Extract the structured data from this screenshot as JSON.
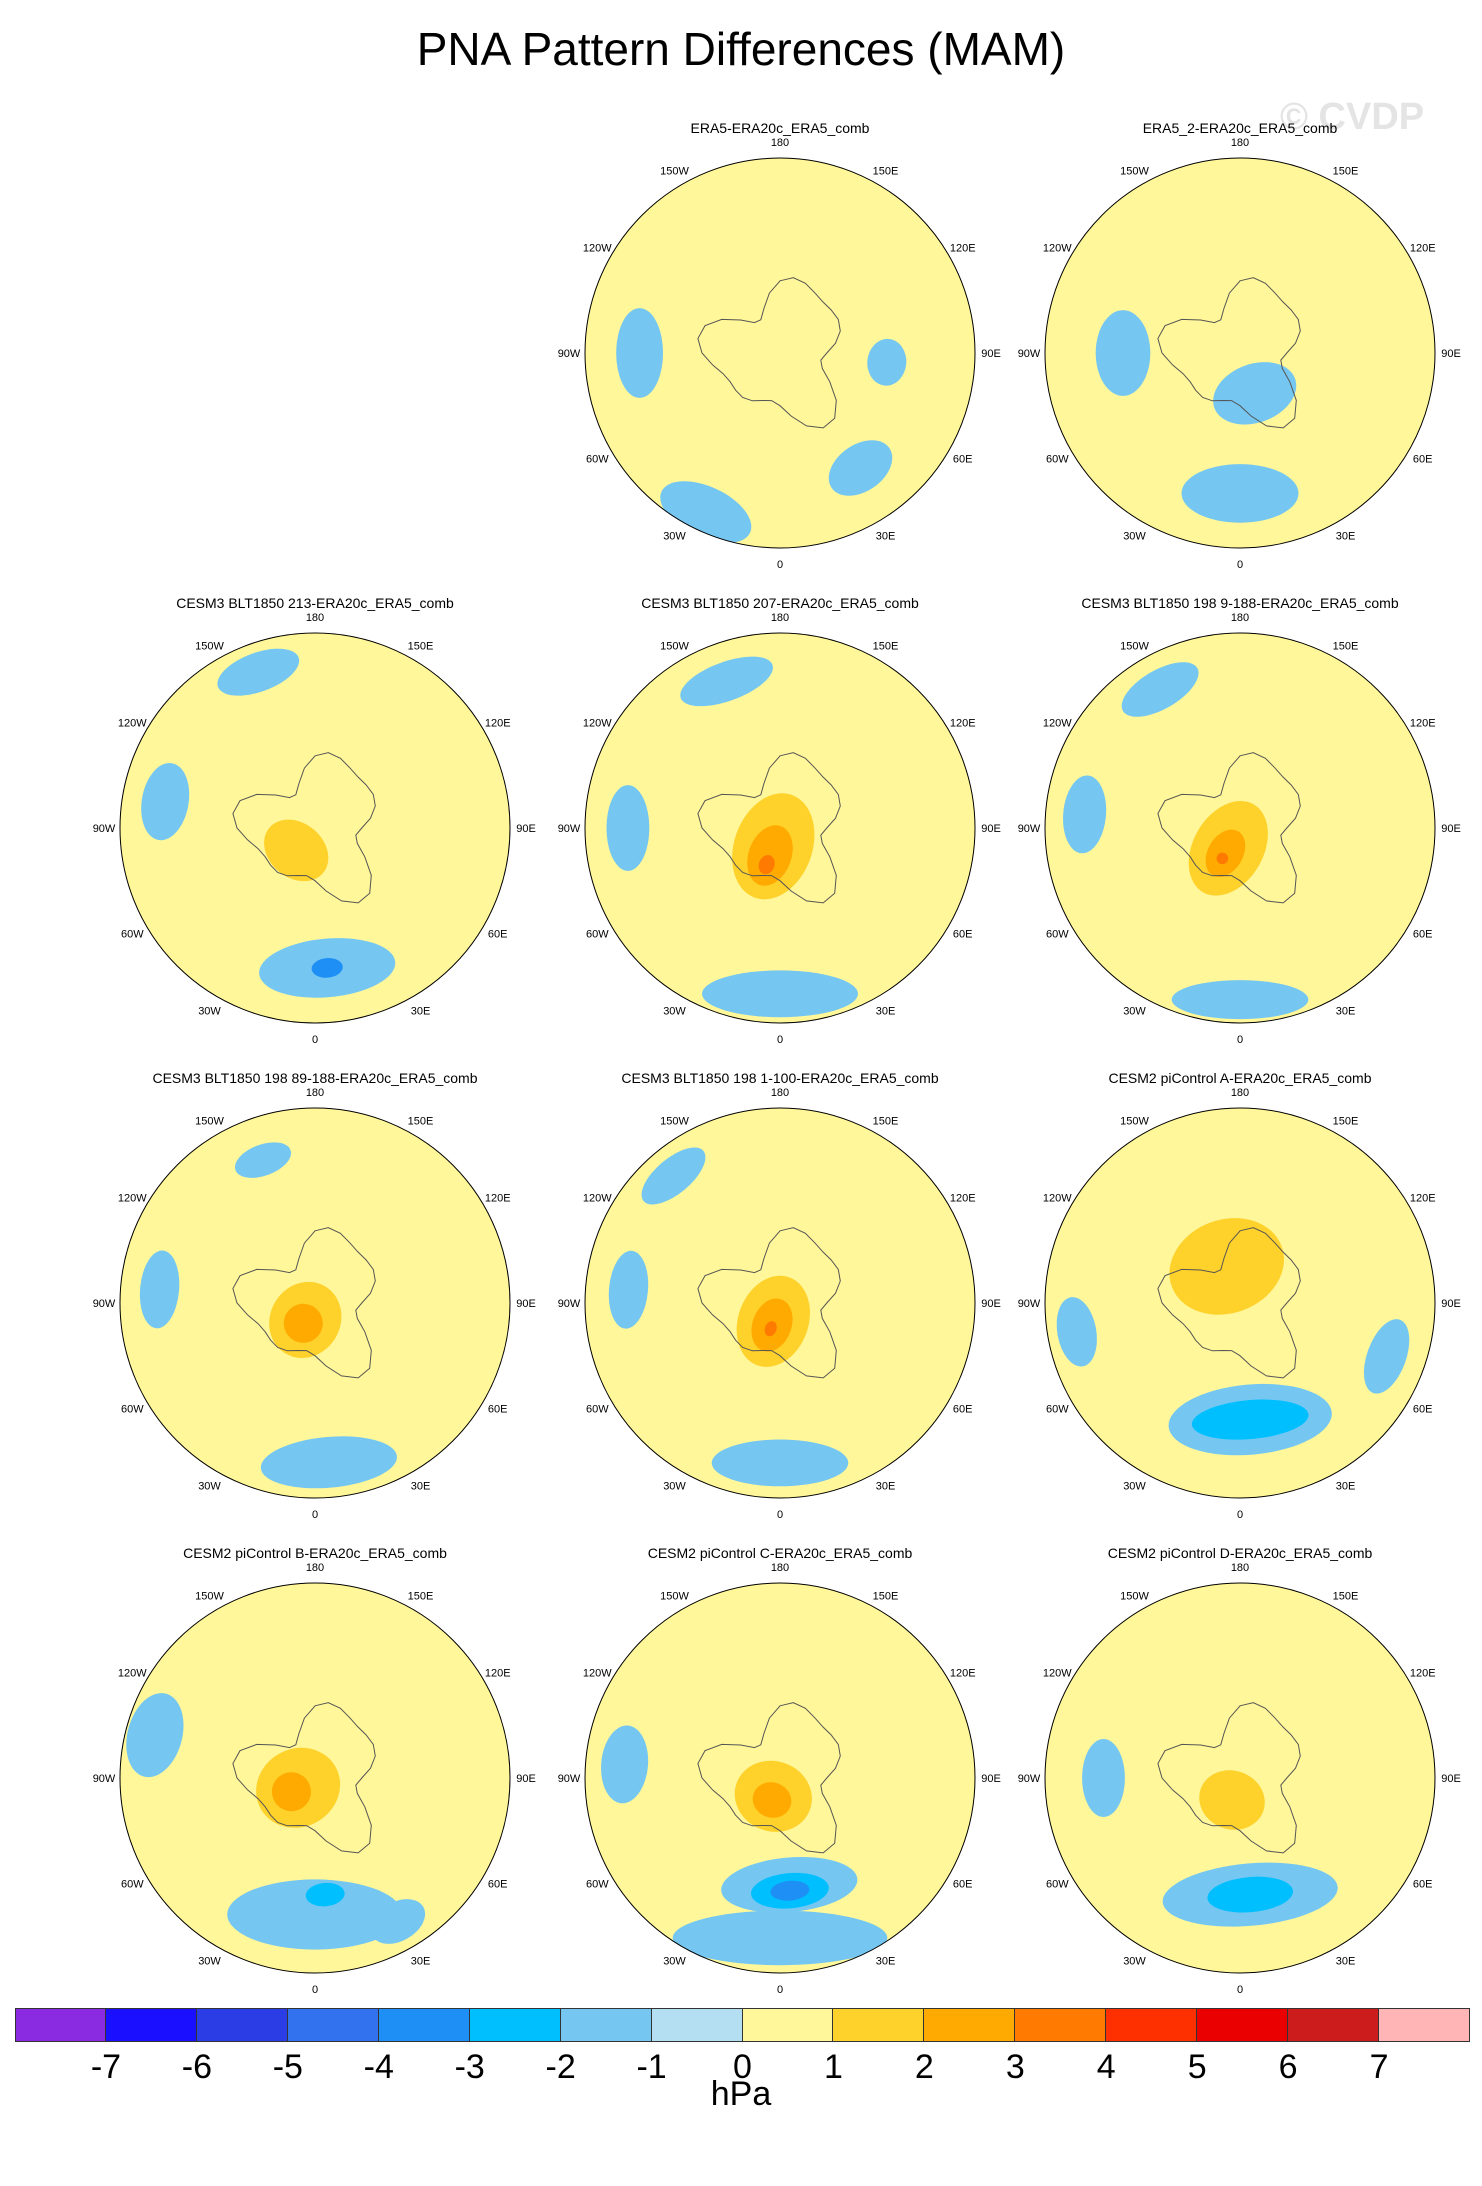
{
  "title": "PNA Pattern Differences (MAM)",
  "watermark": "© CVDP",
  "units": "hPa",
  "colorbar": {
    "colors": [
      "#8a2be2",
      "#1a10ff",
      "#2b3ee6",
      "#3272ee",
      "#1e8ff5",
      "#00bfff",
      "#75c7f2",
      "#b4dff2",
      "#fff799",
      "#ffd12b",
      "#ffaa00",
      "#ff7a00",
      "#ff3000",
      "#ea0000",
      "#cc1c1c",
      "#ffb5b5"
    ],
    "ticks": [
      "-7",
      "-6",
      "-5",
      "-4",
      "-3",
      "-2",
      "-1",
      "0",
      "1",
      "2",
      "3",
      "4",
      "5",
      "6",
      "7"
    ]
  },
  "map_labels": {
    "top": "180",
    "top_left": "150W",
    "top_right": "150E",
    "upper_left": "120W",
    "upper_right": "120E",
    "left": "90W",
    "right": "90E",
    "lower_left": "60W",
    "lower_right": "60E",
    "bottom_left": "30W",
    "bottom_right": "30E",
    "bottom": "0"
  },
  "panels": [
    {
      "title": "ERA5-ERA20c_ERA5_comb",
      "blobs": [
        {
          "type": "neg",
          "level": 1,
          "lon": -155,
          "r": 0.9,
          "rx": 0.25,
          "ry": 0.13
        },
        {
          "type": "neg",
          "level": 1,
          "lon": -90,
          "r": 0.72,
          "rx": 0.23,
          "ry": 0.12
        },
        {
          "type": "neg",
          "level": 1,
          "lon": 145,
          "r": 0.72,
          "rx": 0.18,
          "ry": 0.12
        },
        {
          "type": "neg",
          "level": 1,
          "lon": 95,
          "r": 0.55,
          "rx": 0.12,
          "ry": 0.1
        },
        {
          "type": "pos",
          "level": 1,
          "lon": 170,
          "r": 0.45,
          "rx": 0.07,
          "ry": 0.04
        }
      ]
    },
    {
      "title": "ERA5_2-ERA20c_ERA5_comb",
      "blobs": [
        {
          "type": "neg",
          "level": 1,
          "lon": 180,
          "r": 0.72,
          "rx": 0.3,
          "ry": 0.15
        },
        {
          "type": "neg",
          "level": 1,
          "lon": -90,
          "r": 0.6,
          "rx": 0.22,
          "ry": 0.14
        },
        {
          "type": "neg",
          "level": 1,
          "lon": 160,
          "r": 0.22,
          "rx": 0.22,
          "ry": 0.15
        },
        {
          "type": "pos",
          "level": 1,
          "lon": 180,
          "r": 0.42,
          "rx": 0.07,
          "ry": 0.04
        }
      ]
    },
    {
      "title": "CESM3 BLT1850 213-ERA20c_ERA5_comb",
      "blobs": [
        {
          "type": "neg",
          "level": 1,
          "lon": 175,
          "r": 0.72,
          "rx": 0.35,
          "ry": 0.15
        },
        {
          "type": "neg",
          "level": 3,
          "lon": 175,
          "r": 0.72,
          "rx": 0.08,
          "ry": 0.05
        },
        {
          "type": "neg",
          "level": 1,
          "lon": -80,
          "r": 0.78,
          "rx": 0.2,
          "ry": 0.12
        },
        {
          "type": "neg",
          "level": 1,
          "lon": -20,
          "r": 0.85,
          "rx": 0.22,
          "ry": 0.1
        },
        {
          "type": "pos",
          "level": 2,
          "lon": -140,
          "r": 0.15,
          "rx": 0.18,
          "ry": 0.14
        }
      ]
    },
    {
      "title": "CESM3 BLT1850 207-ERA20c_ERA5_comb",
      "blobs": [
        {
          "type": "neg",
          "level": 1,
          "lon": 180,
          "r": 0.85,
          "rx": 0.4,
          "ry": 0.12
        },
        {
          "type": "neg",
          "level": 1,
          "lon": -90,
          "r": 0.78,
          "rx": 0.22,
          "ry": 0.11
        },
        {
          "type": "neg",
          "level": 1,
          "lon": -20,
          "r": 0.8,
          "rx": 0.25,
          "ry": 0.1
        },
        {
          "type": "pos",
          "level": 2,
          "lon": -160,
          "r": 0.1,
          "rx": 0.2,
          "ry": 0.28
        },
        {
          "type": "pos",
          "level": 3,
          "lon": -160,
          "r": 0.15,
          "rx": 0.11,
          "ry": 0.16
        },
        {
          "type": "pos",
          "level": 4,
          "lon": -160,
          "r": 0.2,
          "rx": 0.04,
          "ry": 0.05
        }
      ]
    },
    {
      "title": "CESM3 BLT1850 198 9-188-ERA20c_ERA5_comb",
      "blobs": [
        {
          "type": "neg",
          "level": 1,
          "lon": 180,
          "r": 0.88,
          "rx": 0.35,
          "ry": 0.1
        },
        {
          "type": "neg",
          "level": 1,
          "lon": -85,
          "r": 0.8,
          "rx": 0.2,
          "ry": 0.11
        },
        {
          "type": "neg",
          "level": 1,
          "lon": -30,
          "r": 0.82,
          "rx": 0.22,
          "ry": 0.1
        },
        {
          "type": "pos",
          "level": 2,
          "lon": -150,
          "r": 0.12,
          "rx": 0.18,
          "ry": 0.26
        },
        {
          "type": "pos",
          "level": 3,
          "lon": -150,
          "r": 0.15,
          "rx": 0.09,
          "ry": 0.13
        },
        {
          "type": "pos",
          "level": 4,
          "lon": -150,
          "r": 0.18,
          "rx": 0.03,
          "ry": 0.03
        }
      ]
    },
    {
      "title": "CESM3 BLT1850 198 89-188-ERA20c_ERA5_comb",
      "blobs": [
        {
          "type": "neg",
          "level": 1,
          "lon": 175,
          "r": 0.82,
          "rx": 0.35,
          "ry": 0.13
        },
        {
          "type": "neg",
          "level": 1,
          "lon": -85,
          "r": 0.8,
          "rx": 0.2,
          "ry": 0.1
        },
        {
          "type": "neg",
          "level": 1,
          "lon": -20,
          "r": 0.78,
          "rx": 0.15,
          "ry": 0.08
        },
        {
          "type": "pos",
          "level": 2,
          "lon": -150,
          "r": 0.1,
          "rx": 0.18,
          "ry": 0.2
        },
        {
          "type": "pos",
          "level": 3,
          "lon": -150,
          "r": 0.12,
          "rx": 0.1,
          "ry": 0.1
        }
      ]
    },
    {
      "title": "CESM3 BLT1850 198 1-100-ERA20c_ERA5_comb",
      "blobs": [
        {
          "type": "neg",
          "level": 1,
          "lon": 180,
          "r": 0.82,
          "rx": 0.35,
          "ry": 0.12
        },
        {
          "type": "neg",
          "level": 1,
          "lon": -85,
          "r": 0.78,
          "rx": 0.2,
          "ry": 0.1
        },
        {
          "type": "neg",
          "level": 1,
          "lon": -40,
          "r": 0.85,
          "rx": 0.2,
          "ry": 0.09
        },
        {
          "type": "pos",
          "level": 2,
          "lon": -160,
          "r": 0.1,
          "rx": 0.18,
          "ry": 0.24
        },
        {
          "type": "pos",
          "level": 3,
          "lon": -160,
          "r": 0.12,
          "rx": 0.1,
          "ry": 0.14
        },
        {
          "type": "pos",
          "level": 4,
          "lon": -160,
          "r": 0.14,
          "rx": 0.03,
          "ry": 0.04
        }
      ]
    },
    {
      "title": "CESM2 piControl A-ERA20c_ERA5_comb",
      "blobs": [
        {
          "type": "neg",
          "level": 1,
          "lon": 175,
          "r": 0.6,
          "rx": 0.42,
          "ry": 0.18
        },
        {
          "type": "neg",
          "level": 2,
          "lon": 175,
          "r": 0.6,
          "rx": 0.3,
          "ry": 0.1
        },
        {
          "type": "neg",
          "level": 1,
          "lon": -100,
          "r": 0.85,
          "rx": 0.18,
          "ry": 0.1
        },
        {
          "type": "neg",
          "level": 1,
          "lon": 110,
          "r": 0.8,
          "rx": 0.2,
          "ry": 0.1
        },
        {
          "type": "pos",
          "level": 2,
          "lon": -20,
          "r": 0.2,
          "rx": 0.3,
          "ry": 0.24
        }
      ]
    },
    {
      "title": "CESM2 piControl B-ERA20c_ERA5_comb",
      "blobs": [
        {
          "type": "neg",
          "level": 1,
          "lon": 180,
          "r": 0.7,
          "rx": 0.45,
          "ry": 0.18
        },
        {
          "type": "neg",
          "level": 2,
          "lon": 175,
          "r": 0.6,
          "rx": 0.1,
          "ry": 0.06
        },
        {
          "type": "neg",
          "level": 1,
          "lon": -75,
          "r": 0.85,
          "rx": 0.22,
          "ry": 0.14
        },
        {
          "type": "neg",
          "level": 1,
          "lon": 150,
          "r": 0.85,
          "rx": 0.15,
          "ry": 0.1
        },
        {
          "type": "pos",
          "level": 2,
          "lon": -120,
          "r": 0.1,
          "rx": 0.2,
          "ry": 0.22
        },
        {
          "type": "pos",
          "level": 3,
          "lon": -120,
          "r": 0.14,
          "rx": 0.1,
          "ry": 0.1
        }
      ]
    },
    {
      "title": "CESM2 piControl C-ERA20c_ERA5_comb",
      "blobs": [
        {
          "type": "neg",
          "level": 1,
          "lon": 180,
          "r": 0.82,
          "rx": 0.55,
          "ry": 0.14
        },
        {
          "type": "neg",
          "level": 1,
          "lon": 175,
          "r": 0.55,
          "rx": 0.35,
          "ry": 0.14
        },
        {
          "type": "neg",
          "level": 2,
          "lon": 175,
          "r": 0.58,
          "rx": 0.2,
          "ry": 0.09
        },
        {
          "type": "neg",
          "level": 3,
          "lon": 175,
          "r": 0.58,
          "rx": 0.1,
          "ry": 0.05
        },
        {
          "type": "neg",
          "level": 1,
          "lon": -85,
          "r": 0.8,
          "rx": 0.2,
          "ry": 0.12
        },
        {
          "type": "pos",
          "level": 2,
          "lon": -160,
          "r": 0.1,
          "rx": 0.2,
          "ry": 0.18
        },
        {
          "type": "pos",
          "level": 3,
          "lon": -160,
          "r": 0.12,
          "rx": 0.1,
          "ry": 0.09
        }
      ]
    },
    {
      "title": "CESM2 piControl D-ERA20c_ERA5_comb",
      "blobs": [
        {
          "type": "neg",
          "level": 1,
          "lon": 175,
          "r": 0.6,
          "rx": 0.45,
          "ry": 0.16
        },
        {
          "type": "neg",
          "level": 2,
          "lon": 175,
          "r": 0.6,
          "rx": 0.22,
          "ry": 0.09
        },
        {
          "type": "neg",
          "level": 1,
          "lon": -90,
          "r": 0.7,
          "rx": 0.2,
          "ry": 0.11
        },
        {
          "type": "pos",
          "level": 2,
          "lon": -160,
          "r": 0.12,
          "rx": 0.17,
          "ry": 0.15
        }
      ]
    }
  ]
}
